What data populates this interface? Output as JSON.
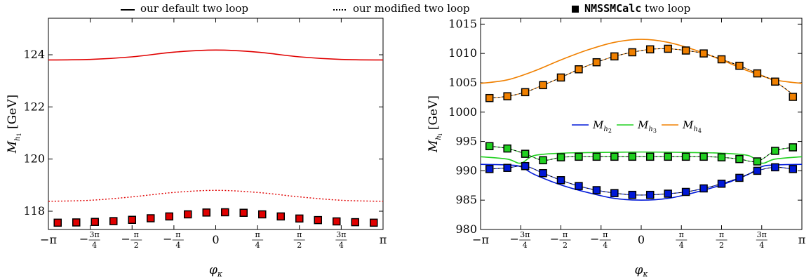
{
  "legend": {
    "default_label": "our default two loop",
    "modified_label": "our modified two loop",
    "calc_label_bold": "NMSSMCalc",
    "calc_label_rest": " two loop"
  },
  "chart_data": [
    {
      "type": "line",
      "xlabel": "φ_κ",
      "ylabel": "M_{h_1} [GeV]",
      "xlim": [
        -3.1416,
        3.1416
      ],
      "ylim": [
        117.3,
        125.4
      ],
      "xticks": [
        "−π",
        "−3π/4",
        "−π/2",
        "−π/4",
        "0",
        "π/4",
        "π/2",
        "3π/4",
        "π"
      ],
      "yticks": [
        118,
        120,
        122,
        124
      ],
      "series": [
        {
          "style": "solid",
          "color": "#e00000",
          "x": [
            -3.1416,
            -2.3562,
            -1.5708,
            -0.7854,
            0,
            0.7854,
            1.5708,
            2.3562,
            3.1416
          ],
          "y": [
            123.8,
            123.82,
            123.92,
            124.1,
            124.18,
            124.1,
            123.92,
            123.82,
            123.8
          ]
        },
        {
          "style": "dotted",
          "color": "#e00000",
          "x": [
            -3.1416,
            -2.3562,
            -1.5708,
            -0.7854,
            0,
            0.7854,
            1.5708,
            2.3562,
            3.1416
          ],
          "y": [
            118.38,
            118.42,
            118.55,
            118.72,
            118.8,
            118.72,
            118.55,
            118.42,
            118.38
          ]
        },
        {
          "style": "markers",
          "color": "#e00000",
          "x": [
            -2.9671,
            -2.618,
            -2.2689,
            -1.9199,
            -1.5708,
            -1.2217,
            -0.8727,
            -0.5236,
            -0.1745,
            0.1745,
            0.5236,
            0.8727,
            1.2217,
            1.5708,
            1.9199,
            2.2689,
            2.618,
            2.9671
          ],
          "y": [
            117.56,
            117.57,
            117.59,
            117.62,
            117.67,
            117.73,
            117.8,
            117.88,
            117.95,
            117.96,
            117.94,
            117.88,
            117.8,
            117.72,
            117.66,
            117.61,
            117.58,
            117.56
          ]
        }
      ]
    },
    {
      "type": "line",
      "xlabel": "φ_κ",
      "ylabel": "M_{h_i} [GeV]",
      "xlim": [
        -3.1416,
        3.1416
      ],
      "ylim": [
        980,
        1016
      ],
      "xticks": [
        "−π",
        "−3π/4",
        "−π/2",
        "−π/4",
        "0",
        "π/4",
        "π/2",
        "3π/4",
        "π"
      ],
      "yticks": [
        980,
        985,
        990,
        995,
        1000,
        1005,
        1010,
        1015
      ],
      "legend": [
        "M_{h_2}",
        "M_{h_3}",
        "M_{h_4}"
      ],
      "series": [
        {
          "name": "M_{h_2}",
          "style": "solid",
          "color": "#0018d8",
          "x": [
            -3.1416,
            -2.618,
            -2.3562,
            -2.0944,
            -1.5708,
            -1.0472,
            -0.5236,
            0,
            0.5236,
            1.0472,
            1.5708,
            2.0944,
            2.3562,
            2.618,
            3.1416
          ],
          "y": [
            991.1,
            991.0,
            990.7,
            989.4,
            987.6,
            986.3,
            985.3,
            985.0,
            985.3,
            986.3,
            987.6,
            989.4,
            990.7,
            991.0,
            991.1
          ]
        },
        {
          "name": "M_{h_3}",
          "style": "solid",
          "color": "#20d020",
          "x": [
            -3.1416,
            -2.618,
            -2.3562,
            -2.0944,
            -1.5708,
            -1.0472,
            0,
            1.0472,
            1.5708,
            2.0944,
            2.3562,
            2.618,
            3.1416
          ],
          "y": [
            992.4,
            992.0,
            991.3,
            992.6,
            993.0,
            993.1,
            993.2,
            993.1,
            993.0,
            992.6,
            991.3,
            992.0,
            992.4
          ]
        },
        {
          "name": "M_{h_4}",
          "style": "solid",
          "color": "#f08000",
          "x": [
            -3.1416,
            -2.618,
            -2.0944,
            -1.5708,
            -1.0472,
            -0.5236,
            0,
            0.5236,
            1.0472,
            1.5708,
            2.0944,
            2.618,
            3.1416
          ],
          "y": [
            1004.9,
            1005.5,
            1007.0,
            1008.9,
            1010.6,
            1011.9,
            1012.4,
            1011.9,
            1010.6,
            1008.9,
            1007.0,
            1005.5,
            1004.9
          ]
        },
        {
          "style": "dotted",
          "color": "#0018d8",
          "x": [
            -2.9671,
            -2.618,
            -2.2689,
            -1.9199,
            -1.5708,
            -1.2217,
            -0.8727,
            -0.5236,
            -0.1745,
            0.1745,
            0.5236,
            0.8727,
            1.2217,
            1.5708,
            1.9199,
            2.2689,
            2.618,
            2.9671
          ],
          "y": [
            990.3,
            990.5,
            990.8,
            989.6,
            988.4,
            987.4,
            986.7,
            986.2,
            985.9,
            985.9,
            986.1,
            986.4,
            987.0,
            987.8,
            988.8,
            990.0,
            990.6,
            990.3
          ]
        },
        {
          "style": "dotted",
          "color": "#20d020",
          "x": [
            -2.9671,
            -2.618,
            -2.2689,
            -1.9199,
            -1.5708,
            -1.2217,
            -0.8727,
            -0.5236,
            -0.1745,
            0.1745,
            0.5236,
            0.8727,
            1.2217,
            1.5708,
            1.9199,
            2.2689,
            2.618,
            2.9671
          ],
          "y": [
            994.2,
            993.8,
            992.9,
            991.8,
            992.3,
            992.4,
            992.4,
            992.4,
            992.4,
            992.4,
            992.4,
            992.4,
            992.4,
            992.3,
            992.0,
            991.6,
            993.4,
            994.0
          ]
        },
        {
          "style": "dotted",
          "color": "#f08000",
          "x": [
            -2.9671,
            -2.618,
            -2.2689,
            -1.9199,
            -1.5708,
            -1.2217,
            -0.8727,
            -0.5236,
            -0.1745,
            0.1745,
            0.5236,
            0.8727,
            1.2217,
            1.5708,
            1.9199,
            2.2689,
            2.618,
            2.9671
          ],
          "y": [
            1002.4,
            1002.7,
            1003.4,
            1004.6,
            1005.9,
            1007.3,
            1008.5,
            1009.5,
            1010.2,
            1010.7,
            1010.8,
            1010.5,
            1010.0,
            1009.0,
            1007.9,
            1006.6,
            1005.2,
            1003.0
          ]
        },
        {
          "style": "markers",
          "color": "#0018d8",
          "x": [
            -2.9671,
            -2.618,
            -2.2689,
            -1.9199,
            -1.5708,
            -1.2217,
            -0.8727,
            -0.5236,
            -0.1745,
            0.1745,
            0.5236,
            0.8727,
            1.2217,
            1.5708,
            1.9199,
            2.2689,
            2.618,
            2.9671
          ],
          "y": [
            990.3,
            990.5,
            990.8,
            989.6,
            988.4,
            987.4,
            986.7,
            986.2,
            985.9,
            985.9,
            986.1,
            986.4,
            987.0,
            987.8,
            988.8,
            990.0,
            990.6,
            990.3
          ]
        },
        {
          "style": "markers",
          "color": "#20d020",
          "x": [
            -2.9671,
            -2.618,
            -2.2689,
            -1.9199,
            -1.5708,
            -1.2217,
            -0.8727,
            -0.5236,
            -0.1745,
            0.1745,
            0.5236,
            0.8727,
            1.2217,
            1.5708,
            1.9199,
            2.2689,
            2.618,
            2.9671
          ],
          "y": [
            994.2,
            993.8,
            992.9,
            991.8,
            992.3,
            992.4,
            992.4,
            992.4,
            992.4,
            992.4,
            992.4,
            992.4,
            992.4,
            992.3,
            992.0,
            991.6,
            993.4,
            994.0
          ]
        },
        {
          "style": "markers",
          "color": "#f08000",
          "x": [
            -2.9671,
            -2.618,
            -2.2689,
            -1.9199,
            -1.5708,
            -1.2217,
            -0.8727,
            -0.5236,
            -0.1745,
            0.1745,
            0.5236,
            0.8727,
            1.2217,
            1.5708,
            1.9199,
            2.2689,
            2.618,
            2.9671
          ],
          "y": [
            1002.4,
            1002.7,
            1003.4,
            1004.6,
            1005.9,
            1007.3,
            1008.5,
            1009.5,
            1010.2,
            1010.7,
            1010.8,
            1010.5,
            1010.0,
            1009.0,
            1007.9,
            1006.6,
            1005.2,
            1002.6
          ]
        }
      ]
    }
  ]
}
